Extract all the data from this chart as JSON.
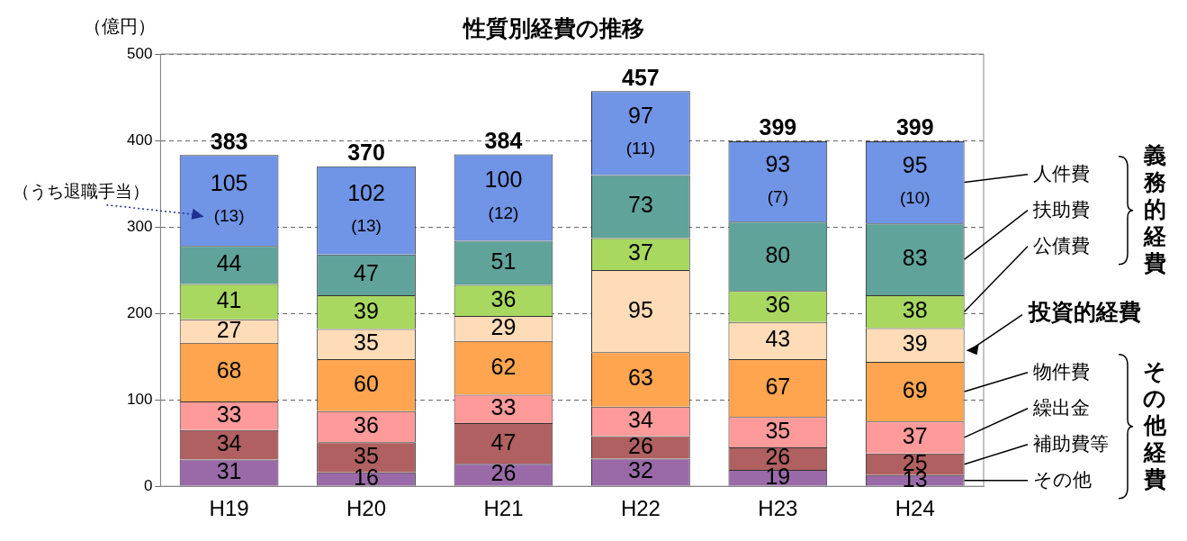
{
  "chart_data": {
    "type": "bar",
    "title": "性質別経費の推移",
    "ylabel": "（億円）",
    "categories": [
      "H19",
      "H20",
      "H21",
      "H22",
      "H23",
      "H24"
    ],
    "stacked": true,
    "ylim": [
      0,
      500
    ],
    "yticks": [
      0,
      100,
      200,
      300,
      400,
      500
    ],
    "grid": "y",
    "legend": "right",
    "data_labels": true,
    "totals": [
      "383",
      "370",
      "384",
      "457",
      "399",
      "399"
    ],
    "annotations": [
      "義務的経費",
      "その他経費",
      "（うち退職手当）"
    ],
    "series": [
      {
        "name": "その他",
        "color": "#9a6aa8",
        "values": [
          31,
          16,
          26,
          32,
          19,
          13
        ]
      },
      {
        "name": "補助費等",
        "color": "#b06060",
        "values": [
          34,
          35,
          47,
          26,
          26,
          25
        ]
      },
      {
        "name": "繰出金",
        "color": "#ff9a9a",
        "values": [
          33,
          36,
          33,
          34,
          35,
          37
        ]
      },
      {
        "name": "物件費",
        "color": "#ffa54f",
        "values": [
          68,
          60,
          62,
          63,
          67,
          69
        ]
      },
      {
        "name": "投資的経費",
        "color": "#ffdcb8",
        "values": [
          27,
          35,
          29,
          95,
          43,
          39
        ]
      },
      {
        "name": "公債費",
        "color": "#a8d860",
        "values": [
          41,
          39,
          36,
          37,
          36,
          38
        ]
      },
      {
        "name": "扶助費",
        "color": "#5fa39b",
        "values": [
          44,
          47,
          51,
          73,
          80,
          83
        ]
      },
      {
        "name": "人件費",
        "color": "#7094e6",
        "values": [
          105,
          102,
          100,
          97,
          93,
          95
        ],
        "value_labels": [
          "105\n(13)",
          "102\n(13)",
          "100\n(12)",
          "97\n(11)",
          "93\n(7)",
          "95\n(10)"
        ]
      }
    ]
  }
}
